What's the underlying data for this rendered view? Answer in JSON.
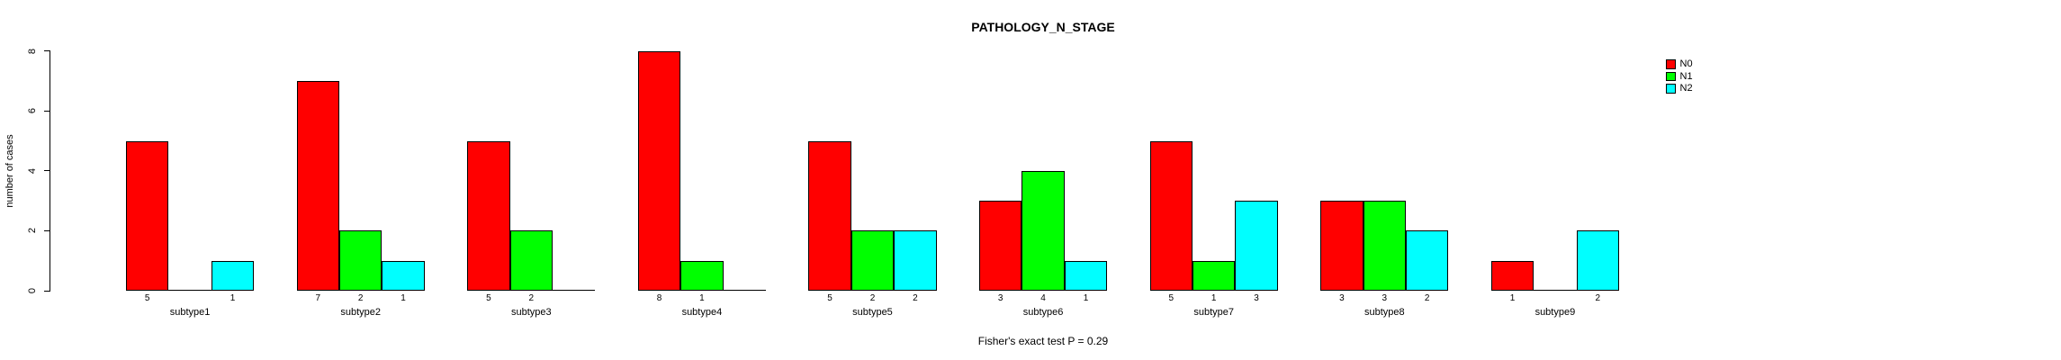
{
  "chart_data": {
    "type": "bar",
    "grouped": true,
    "title": "PATHOLOGY_N_STAGE",
    "note": "Fisher's exact test P = 0.29",
    "ylabel": "number of cases",
    "xlabel": "",
    "ylim": [
      0,
      8
    ],
    "yticks": [
      0,
      2,
      4,
      6,
      8
    ],
    "grid": false,
    "legend_position": "top-right",
    "value_labels": "shown under each bar; zero values have no label",
    "categories": [
      "subtype1",
      "subtype2",
      "subtype3",
      "subtype4",
      "subtype5",
      "subtype6",
      "subtype7",
      "subtype8",
      "subtype9"
    ],
    "series": [
      {
        "name": "N0",
        "color": "#FF0000",
        "values": [
          5,
          7,
          5,
          8,
          5,
          3,
          5,
          3,
          1
        ]
      },
      {
        "name": "N1",
        "color": "#00FF00",
        "values": [
          0,
          2,
          2,
          1,
          2,
          4,
          1,
          3,
          0
        ]
      },
      {
        "name": "N2",
        "color": "#00FFFF",
        "values": [
          1,
          1,
          0,
          0,
          2,
          1,
          3,
          2,
          2
        ]
      }
    ]
  },
  "colors": {
    "background": "#FFFFFF",
    "axis": "#000000",
    "text": "#000000"
  }
}
